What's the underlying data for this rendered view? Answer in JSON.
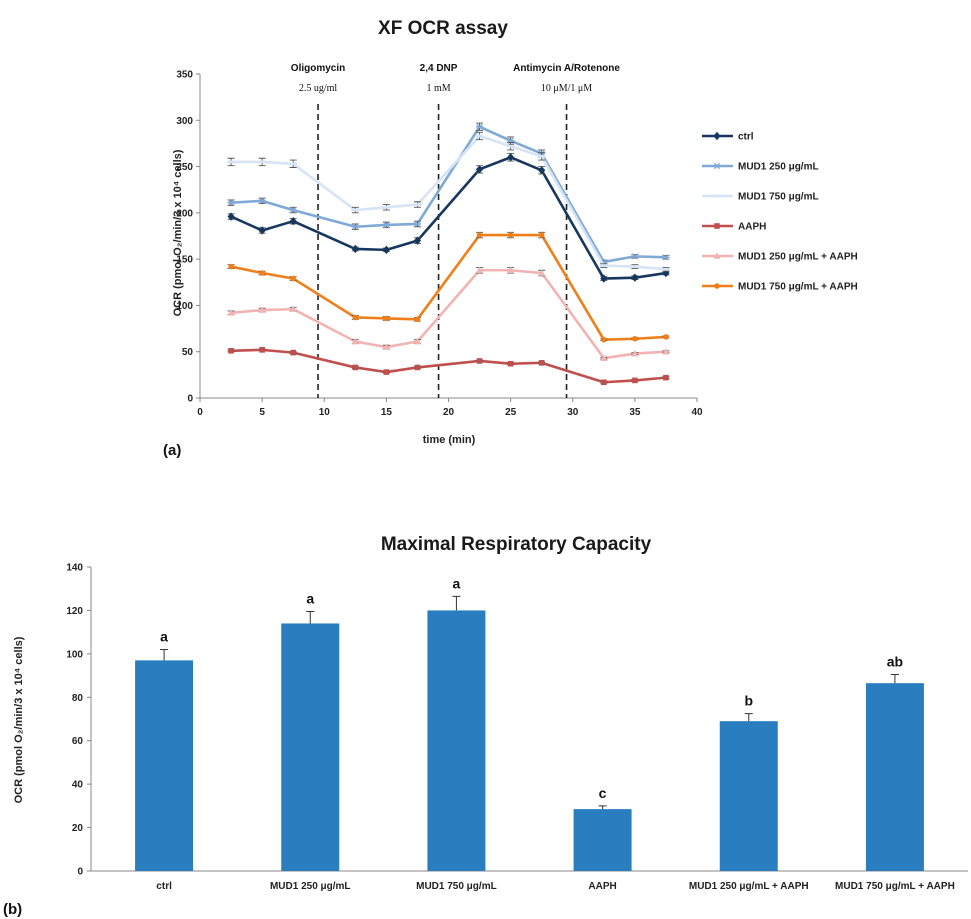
{
  "chart_data": [
    {
      "type": "line",
      "title": "XF OCR assay",
      "panel_label": "(a)",
      "xlabel": "time (min)",
      "ylabel": "OCR (pmol O₂/min/3 x 10⁴ cells)",
      "xlim": [
        0,
        40
      ],
      "ylim": [
        0,
        350
      ],
      "xticks": [
        0,
        5,
        10,
        15,
        20,
        25,
        30,
        35,
        40
      ],
      "yticks": [
        0,
        50,
        100,
        150,
        200,
        250,
        300,
        350
      ],
      "grid": false,
      "legend_position": "right",
      "x": [
        2.5,
        5,
        7.5,
        12.5,
        15,
        17.5,
        22.5,
        25,
        27.5,
        32.5,
        35,
        37.5
      ],
      "injections": [
        {
          "x": 9.5,
          "label": "Oligomycin",
          "dose": "2.5 ug/ml"
        },
        {
          "x": 19.2,
          "label": "2,4 DNP",
          "dose": "1 mM"
        },
        {
          "x": 29.5,
          "label": "Antimycin A/Rotenone",
          "dose": "10 μM/1 μM"
        }
      ],
      "series": [
        {
          "name": "ctrl",
          "color": "#17375e",
          "marker": "diamond",
          "values": [
            196,
            181,
            191,
            161,
            160,
            170,
            247,
            260,
            246,
            129,
            130,
            135
          ],
          "errors": [
            3,
            3,
            3,
            2,
            2,
            3,
            4,
            4,
            4,
            2,
            2,
            2
          ]
        },
        {
          "name": "MUD1 250 μg/mL",
          "color": "#7fa9d6",
          "marker": "star",
          "values": [
            211,
            213,
            203,
            185,
            187,
            188,
            293,
            278,
            264,
            147,
            153,
            152
          ],
          "errors": [
            3,
            3,
            3,
            3,
            3,
            3,
            4,
            4,
            4,
            2,
            2,
            2
          ]
        },
        {
          "name": "MUD1 750 μg/mL",
          "color": "#d6e4f5",
          "marker": "dash",
          "values": [
            255,
            255,
            253,
            203,
            206,
            209,
            283,
            272,
            261,
            143,
            142,
            139
          ],
          "errors": [
            4,
            4,
            4,
            3,
            3,
            3,
            4,
            4,
            4,
            2,
            2,
            2
          ]
        },
        {
          "name": "AAPH",
          "color": "#c0504d",
          "marker": "square",
          "values": [
            51,
            52,
            49,
            33,
            28,
            33,
            40,
            37,
            38,
            17,
            19,
            22
          ],
          "errors": [
            1,
            1,
            1,
            1,
            1,
            1,
            1,
            1,
            1,
            1,
            1,
            1
          ]
        },
        {
          "name": "MUD1 250 μg/mL + AAPH",
          "color": "#f2b3b3",
          "marker": "triangle",
          "values": [
            92,
            95,
            96,
            61,
            55,
            61,
            138,
            138,
            135,
            43,
            48,
            50
          ],
          "errors": [
            2,
            2,
            2,
            2,
            2,
            2,
            3,
            3,
            3,
            1,
            1,
            1
          ]
        },
        {
          "name": "MUD1 750 μg/mL + AAPH",
          "color": "#f07f1a",
          "marker": "circle",
          "values": [
            142,
            135,
            129,
            87,
            86,
            85,
            176,
            176,
            176,
            63,
            64,
            66
          ],
          "errors": [
            2,
            2,
            2,
            2,
            2,
            2,
            3,
            3,
            3,
            1,
            1,
            1
          ]
        }
      ]
    },
    {
      "type": "bar",
      "title": "Maximal Respiratory Capacity",
      "panel_label": "(b)",
      "ylabel": "OCR (pmol O₂/min/3 x 10⁴ cells)",
      "ylim": [
        0,
        140
      ],
      "yticks": [
        0,
        20,
        40,
        60,
        80,
        100,
        120,
        140
      ],
      "grid": false,
      "bar_color": "#2a7dbf",
      "categories": [
        "ctrl",
        "MUD1 250 μg/mL",
        "MUD1 750 μg/mL",
        "AAPH",
        "MUD1 250 μg/mL + AAPH",
        "MUD1 750 μg/mL + AAPH"
      ],
      "values": [
        97,
        114,
        120,
        28.5,
        69,
        86.5
      ],
      "errors": [
        5,
        5.5,
        6.5,
        1.5,
        3.5,
        4
      ],
      "letters": [
        "a",
        "a",
        "a",
        "c",
        "b",
        "ab"
      ]
    }
  ]
}
